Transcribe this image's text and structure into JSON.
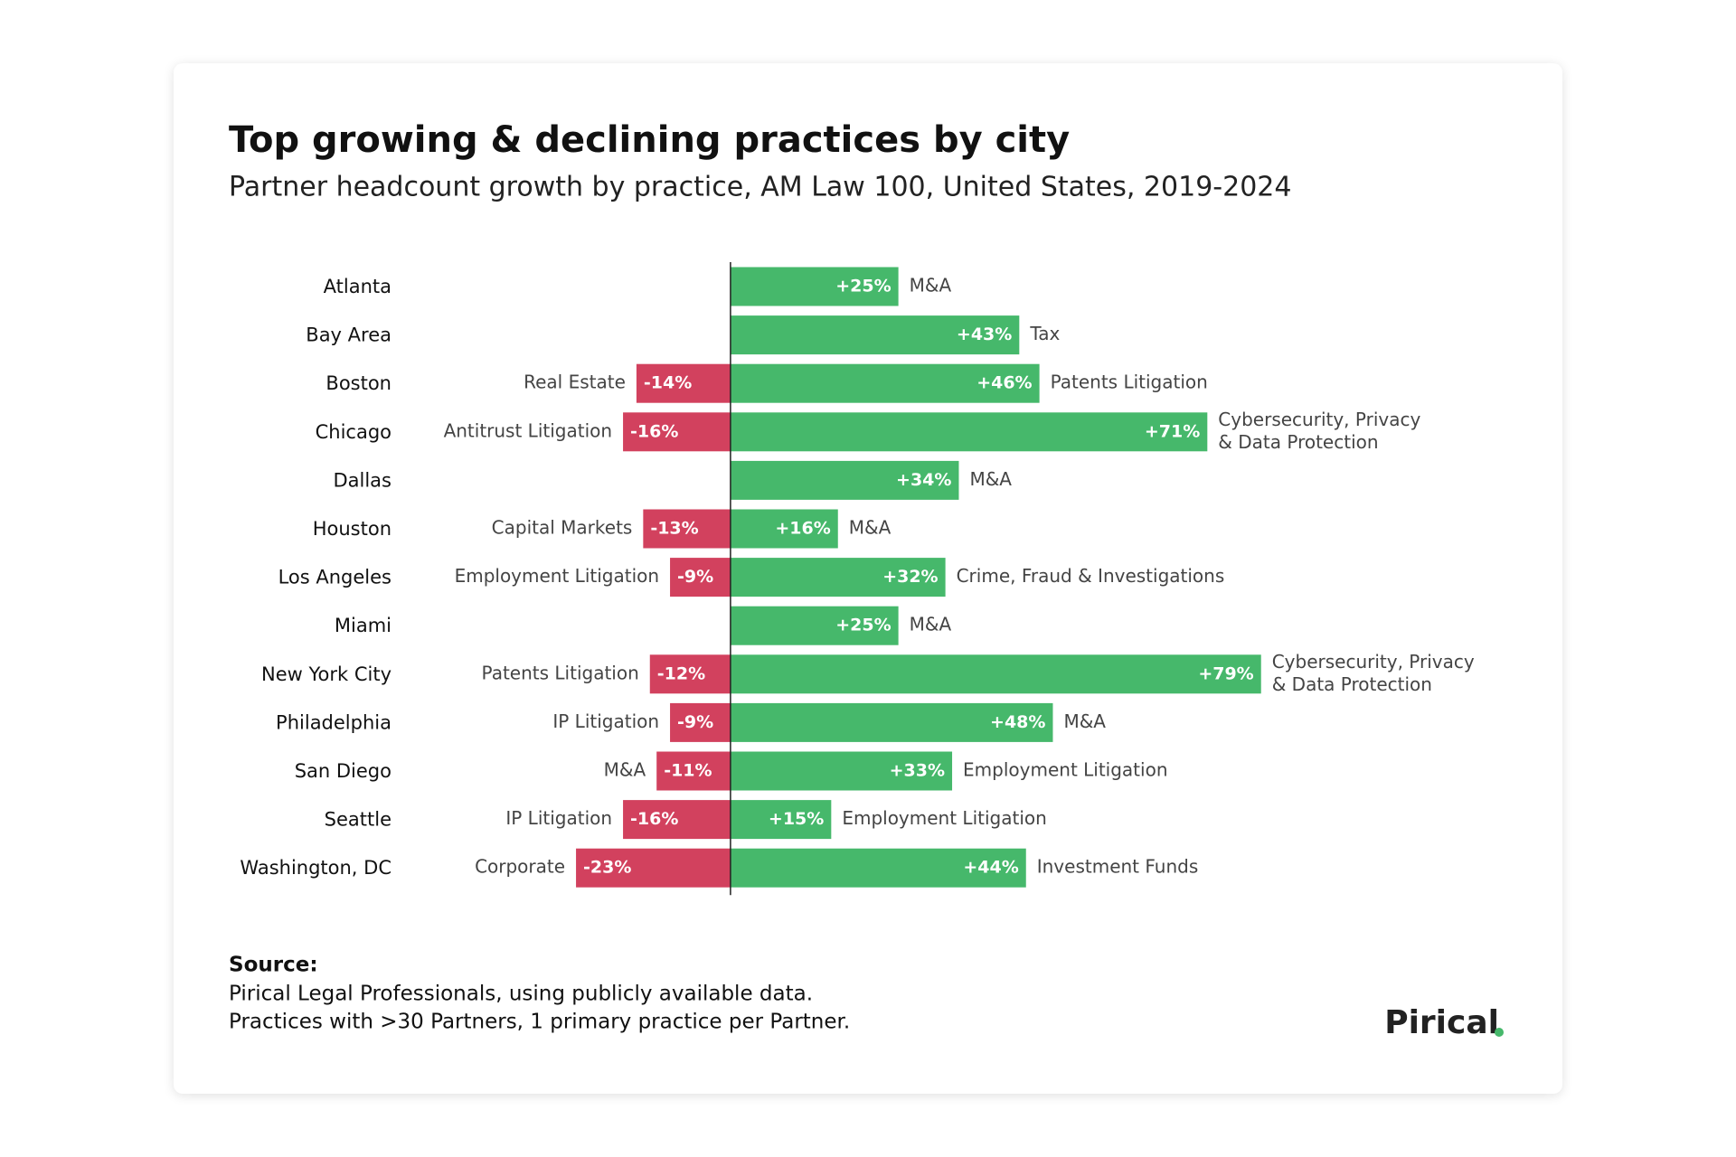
{
  "chart_data": {
    "type": "bar",
    "orientation": "horizontal",
    "title": "Top growing & declining practices by city",
    "subtitle": "Partner headcount growth by practice, AM Law 100, United States, 2019-2024",
    "categories": [
      "Atlanta",
      "Bay Area",
      "Boston",
      "Chicago",
      "Dallas",
      "Houston",
      "Los Angeles",
      "Miami",
      "New York City",
      "Philadelphia",
      "San Diego",
      "Seattle",
      "Washington, DC"
    ],
    "xlim": [
      -50,
      110
    ],
    "series": [
      {
        "color": "#d2415e",
        "values": [
          null,
          null,
          -14,
          -16,
          null,
          -13,
          -9,
          null,
          -12,
          -9,
          -11,
          -16,
          -23
        ],
        "value_labels": [
          null,
          null,
          "-14%",
          "-16%",
          null,
          "-13%",
          "-9%",
          null,
          "-12%",
          "-9%",
          "-11%",
          "-16%",
          "-23%"
        ],
        "labels": [
          null,
          null,
          "Real Estate",
          "Antitrust Litigation",
          null,
          "Capital Markets",
          "Employment Litigation",
          null,
          "Patents Litigation",
          "IP Litigation",
          "M&A",
          "IP Litigation",
          "Corporate"
        ]
      },
      {
        "color": "#46b86b",
        "values": [
          25,
          43,
          46,
          71,
          34,
          16,
          32,
          25,
          79,
          48,
          33,
          15,
          44
        ],
        "value_labels": [
          "+25%",
          "+43%",
          "+46%",
          "+71%",
          "+34%",
          "+16%",
          "+32%",
          "+25%",
          "+79%",
          "+48%",
          "+33%",
          "+15%",
          "+44%"
        ],
        "labels": [
          "M&A",
          "Tax",
          "Patents Litigation",
          [
            "Cybersecurity, Privacy",
            "& Data Protection"
          ],
          "M&A",
          "M&A",
          "Crime, Fraud & Investigations",
          "M&A",
          [
            "Cybersecurity, Privacy",
            "& Data Protection"
          ],
          "M&A",
          "Employment Litigation",
          "Employment Litigation",
          "Investment Funds"
        ]
      }
    ]
  },
  "source": {
    "heading": "Source:",
    "lines": [
      "Pirical Legal Professionals, using publicly available data.",
      "Practices with >30 Partners, 1 primary practice per Partner."
    ]
  },
  "logo": "Pirical"
}
